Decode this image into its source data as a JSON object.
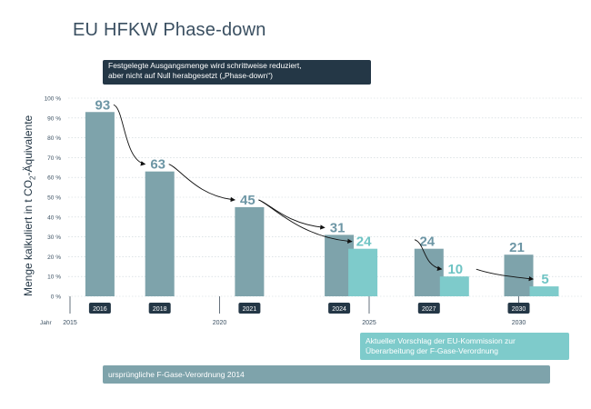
{
  "title": "EU HFKW Phase-down",
  "callout_top": [
    "Festgelegte Ausgangsmenge wird schrittweise reduziert,",
    "aber nicht auf Null herabgesetzt („Phase-down“)"
  ],
  "callout_proposal": [
    "Aktueller Vorschlag der EU-Kommission zur",
    "Überarbeitung der F-Gase-Verordnung"
  ],
  "callout_original": "ursprüngliche F-Gase-Verordnung 2014",
  "ylabel": {
    "prefix": "Menge kalkuliert in t CO",
    "sub": "2",
    "suffix": "-Äquivalente"
  },
  "colors": {
    "original": "#7ea3ab",
    "proposal": "#7ecbcb",
    "dark": "#243746",
    "value_original": "#6d96a5",
    "value_proposal": "#6fc4c4"
  },
  "chart_data": {
    "type": "bar",
    "xlabel": "Jahr",
    "x_ticks": [
      "2015",
      "2020",
      "2025",
      "2030"
    ],
    "ylim": [
      0,
      100
    ],
    "y_ticks": [
      "0 %",
      "10 %",
      "20 %",
      "30 %",
      "40 %",
      "50 %",
      "60 %",
      "70 %",
      "80 %",
      "90 %",
      "100 %"
    ],
    "series": [
      {
        "name": "ursprüngliche F-Gase-Verordnung 2014",
        "points": [
          {
            "year": "2016",
            "value": 93
          },
          {
            "year": "2018",
            "value": 63
          },
          {
            "year": "2021",
            "value": 45
          },
          {
            "year": "2024",
            "value": 31
          },
          {
            "year": "2027",
            "value": 24
          },
          {
            "year": "2030",
            "value": 21
          }
        ]
      },
      {
        "name": "Aktueller Vorschlag der EU-Kommission zur Überarbeitung der F-Gase-Verordnung",
        "points": [
          {
            "year": "2025",
            "value": 24
          },
          {
            "year": "2027",
            "value": 10
          },
          {
            "year": "2030",
            "value": 5
          }
        ]
      }
    ]
  }
}
